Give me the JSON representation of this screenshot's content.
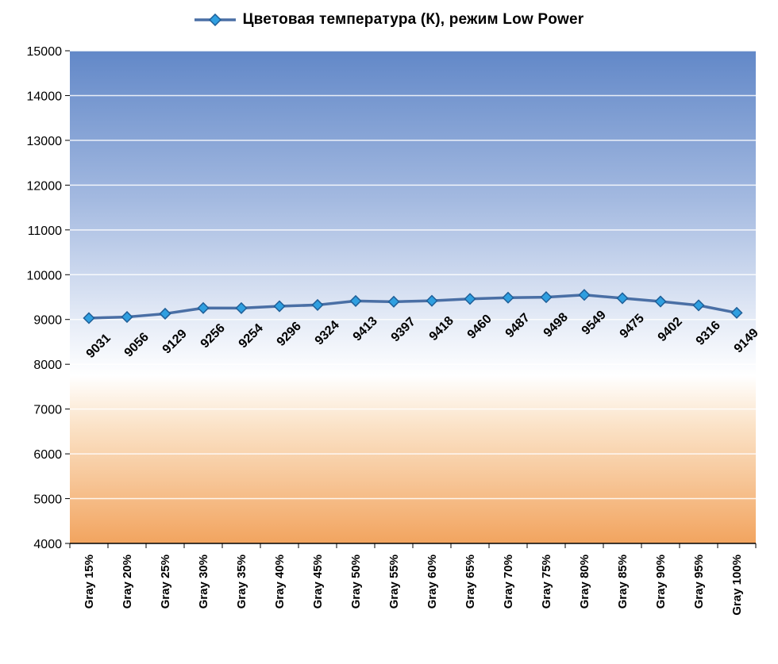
{
  "title": "Цветовая температура (К), режим Low Power",
  "chart_data": {
    "type": "line",
    "title": "Цветовая температура (К), режим Low Power",
    "categories": [
      "Gray 15%",
      "Gray 20%",
      "Gray 25%",
      "Gray 30%",
      "Gray 35%",
      "Gray 40%",
      "Gray 45%",
      "Gray 50%",
      "Gray 55%",
      "Gray 60%",
      "Gray 65%",
      "Gray 70%",
      "Gray 75%",
      "Gray 80%",
      "Gray 85%",
      "Gray 90%",
      "Gray 95%",
      "Gray 100%"
    ],
    "values": [
      9031,
      9056,
      9129,
      9256,
      9254,
      9296,
      9324,
      9413,
      9397,
      9418,
      9460,
      9487,
      9498,
      9549,
      9475,
      9402,
      9316,
      9149
    ],
    "ylim": [
      4000,
      15000
    ],
    "ytick_step": 1000,
    "ytick_labels": [
      "4000",
      "5000",
      "6000",
      "7000",
      "8000",
      "9000",
      "10000",
      "11000",
      "12000",
      "13000",
      "14000",
      "15000"
    ],
    "grid": true,
    "legend_position": "top",
    "data_labels": true,
    "colors": {
      "line": "#4a6fa5",
      "marker_fill": "#2f9fe0",
      "marker_stroke": "#1f5f98",
      "label": "#000000",
      "axis": "#000000",
      "gridline": "#ffffff"
    },
    "plot_background": [
      {
        "offset": "0%",
        "color": "#6288c8"
      },
      {
        "offset": "30%",
        "color": "#a3b9e0"
      },
      {
        "offset": "55%",
        "color": "#e6ecf7"
      },
      {
        "offset": "66%",
        "color": "#ffffff"
      },
      {
        "offset": "76%",
        "color": "#fbe3c8"
      },
      {
        "offset": "100%",
        "color": "#f2a45f"
      }
    ]
  }
}
